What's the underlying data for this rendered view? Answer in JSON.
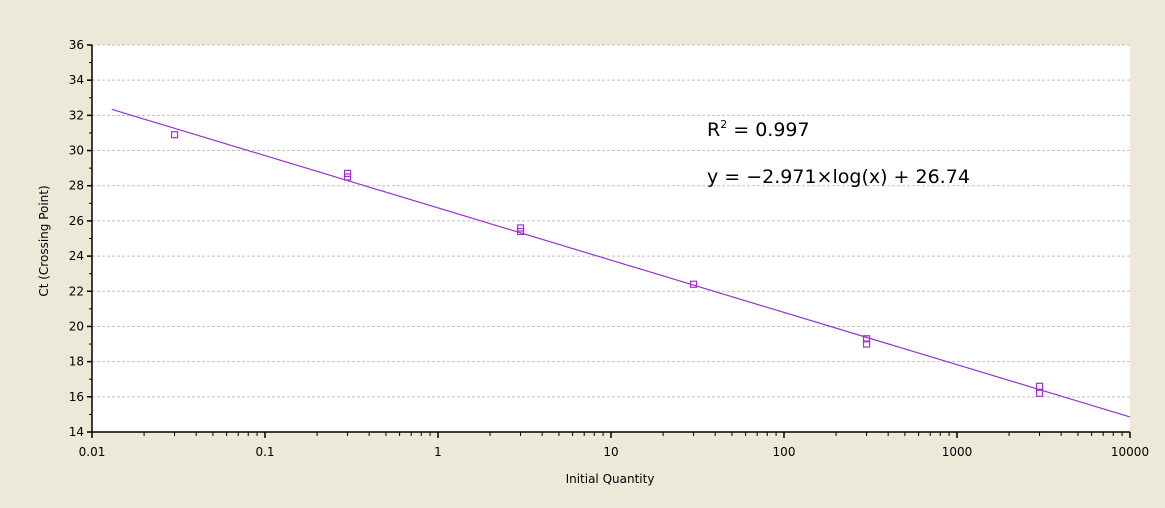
{
  "colors": {
    "background": "#ece9d8",
    "plot_area": "#ffffff",
    "grid": "#c0c0c0",
    "axis": "#000000",
    "series": "#9933cc"
  },
  "chart_data": {
    "type": "scatter",
    "title": "",
    "xlabel": "Initial Quantity",
    "ylabel": "Ct (Crossing Point)",
    "xscale": "log",
    "xlim": [
      0.01,
      10000
    ],
    "ylim": [
      14,
      36
    ],
    "x_ticks": [
      0.01,
      0.1,
      1,
      10,
      100,
      1000,
      10000
    ],
    "x_tick_labels": [
      "0.01",
      "0.1",
      "1",
      "10",
      "100",
      "1000",
      "10000"
    ],
    "y_ticks": [
      14,
      16,
      18,
      20,
      22,
      24,
      26,
      28,
      30,
      32,
      34,
      36
    ],
    "y_tick_labels": [
      "14",
      "16",
      "18",
      "20",
      "22",
      "24",
      "26",
      "28",
      "30",
      "32",
      "34",
      "36"
    ],
    "grid": "horizontal dashed",
    "points": [
      {
        "x": 0.03,
        "y": 30.9
      },
      {
        "x": 0.3,
        "y": 28.7
      },
      {
        "x": 0.3,
        "y": 28.5
      },
      {
        "x": 3,
        "y": 25.6
      },
      {
        "x": 3,
        "y": 25.4
      },
      {
        "x": 30,
        "y": 22.4
      },
      {
        "x": 300,
        "y": 19.3
      },
      {
        "x": 300,
        "y": 19.0
      },
      {
        "x": 3000,
        "y": 16.6
      },
      {
        "x": 3000,
        "y": 16.2
      }
    ],
    "fit": {
      "slope": -2.971,
      "intercept": 26.74,
      "x_start": 0.013,
      "x_end": 10000
    },
    "annotations": {
      "r2_prefix": "R",
      "r2_sup": "2",
      "r2_value": " = 0.997",
      "equation": "y = −2.971×log(x) + 26.74"
    }
  }
}
